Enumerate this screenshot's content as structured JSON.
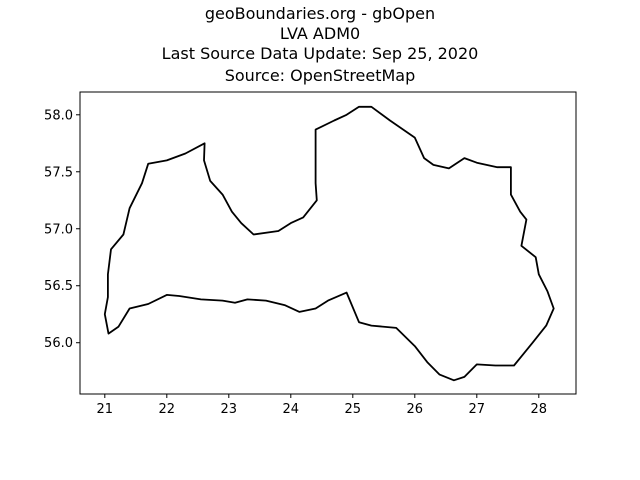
{
  "title_lines": [
    "geoBoundaries.org - gbOpen",
    "LVA ADM0",
    "Last Source Data Update: Sep 25, 2020",
    "Source: OpenStreetMap"
  ],
  "chart_data": {
    "type": "map",
    "xlim": [
      20.6,
      28.6
    ],
    "ylim": [
      55.55,
      58.2
    ],
    "x_ticks": [
      "21",
      "22",
      "23",
      "24",
      "25",
      "26",
      "27",
      "28"
    ],
    "y_ticks": [
      "56.0",
      "56.5",
      "57.0",
      "57.5",
      "58.0"
    ],
    "outline_color": "#000000",
    "boundary": [
      [
        21.06,
        56.08
      ],
      [
        21.22,
        56.14
      ],
      [
        21.4,
        56.3
      ],
      [
        21.7,
        56.34
      ],
      [
        22.0,
        56.42
      ],
      [
        22.2,
        56.41
      ],
      [
        22.55,
        56.38
      ],
      [
        22.9,
        56.37
      ],
      [
        23.1,
        56.35
      ],
      [
        23.3,
        56.38
      ],
      [
        23.6,
        56.37
      ],
      [
        23.9,
        56.33
      ],
      [
        24.14,
        56.27
      ],
      [
        24.4,
        56.3
      ],
      [
        24.6,
        56.37
      ],
      [
        24.9,
        56.44
      ],
      [
        25.1,
        56.18
      ],
      [
        25.3,
        56.15
      ],
      [
        25.7,
        56.13
      ],
      [
        26.0,
        55.97
      ],
      [
        26.2,
        55.83
      ],
      [
        26.4,
        55.72
      ],
      [
        26.63,
        55.67
      ],
      [
        26.8,
        55.7
      ],
      [
        27.0,
        55.81
      ],
      [
        27.3,
        55.8
      ],
      [
        27.6,
        55.8
      ],
      [
        27.72,
        55.88
      ],
      [
        27.9,
        56.0
      ],
      [
        28.12,
        56.15
      ],
      [
        28.24,
        56.3
      ],
      [
        28.14,
        56.45
      ],
      [
        28.0,
        56.6
      ],
      [
        27.95,
        56.75
      ],
      [
        27.72,
        56.85
      ],
      [
        27.8,
        57.08
      ],
      [
        27.7,
        57.15
      ],
      [
        27.55,
        57.3
      ],
      [
        27.55,
        57.54
      ],
      [
        27.33,
        57.54
      ],
      [
        27.0,
        57.58
      ],
      [
        26.8,
        57.62
      ],
      [
        26.55,
        57.53
      ],
      [
        26.3,
        57.56
      ],
      [
        26.15,
        57.62
      ],
      [
        26.0,
        57.8
      ],
      [
        25.6,
        57.95
      ],
      [
        25.3,
        58.07
      ],
      [
        25.1,
        58.07
      ],
      [
        24.9,
        58.0
      ],
      [
        24.7,
        57.95
      ],
      [
        24.4,
        57.87
      ],
      [
        24.4,
        57.4
      ],
      [
        24.42,
        57.25
      ],
      [
        24.2,
        57.1
      ],
      [
        24.0,
        57.05
      ],
      [
        23.8,
        56.98
      ],
      [
        23.4,
        56.95
      ],
      [
        23.2,
        57.05
      ],
      [
        23.05,
        57.15
      ],
      [
        22.9,
        57.3
      ],
      [
        22.7,
        57.42
      ],
      [
        22.6,
        57.6
      ],
      [
        22.61,
        57.75
      ],
      [
        22.3,
        57.66
      ],
      [
        22.0,
        57.6
      ],
      [
        21.7,
        57.57
      ],
      [
        21.6,
        57.4
      ],
      [
        21.4,
        57.18
      ],
      [
        21.3,
        56.95
      ],
      [
        21.1,
        56.82
      ],
      [
        21.05,
        56.6
      ],
      [
        21.05,
        56.4
      ],
      [
        21.0,
        56.25
      ],
      [
        21.06,
        56.08
      ]
    ]
  }
}
